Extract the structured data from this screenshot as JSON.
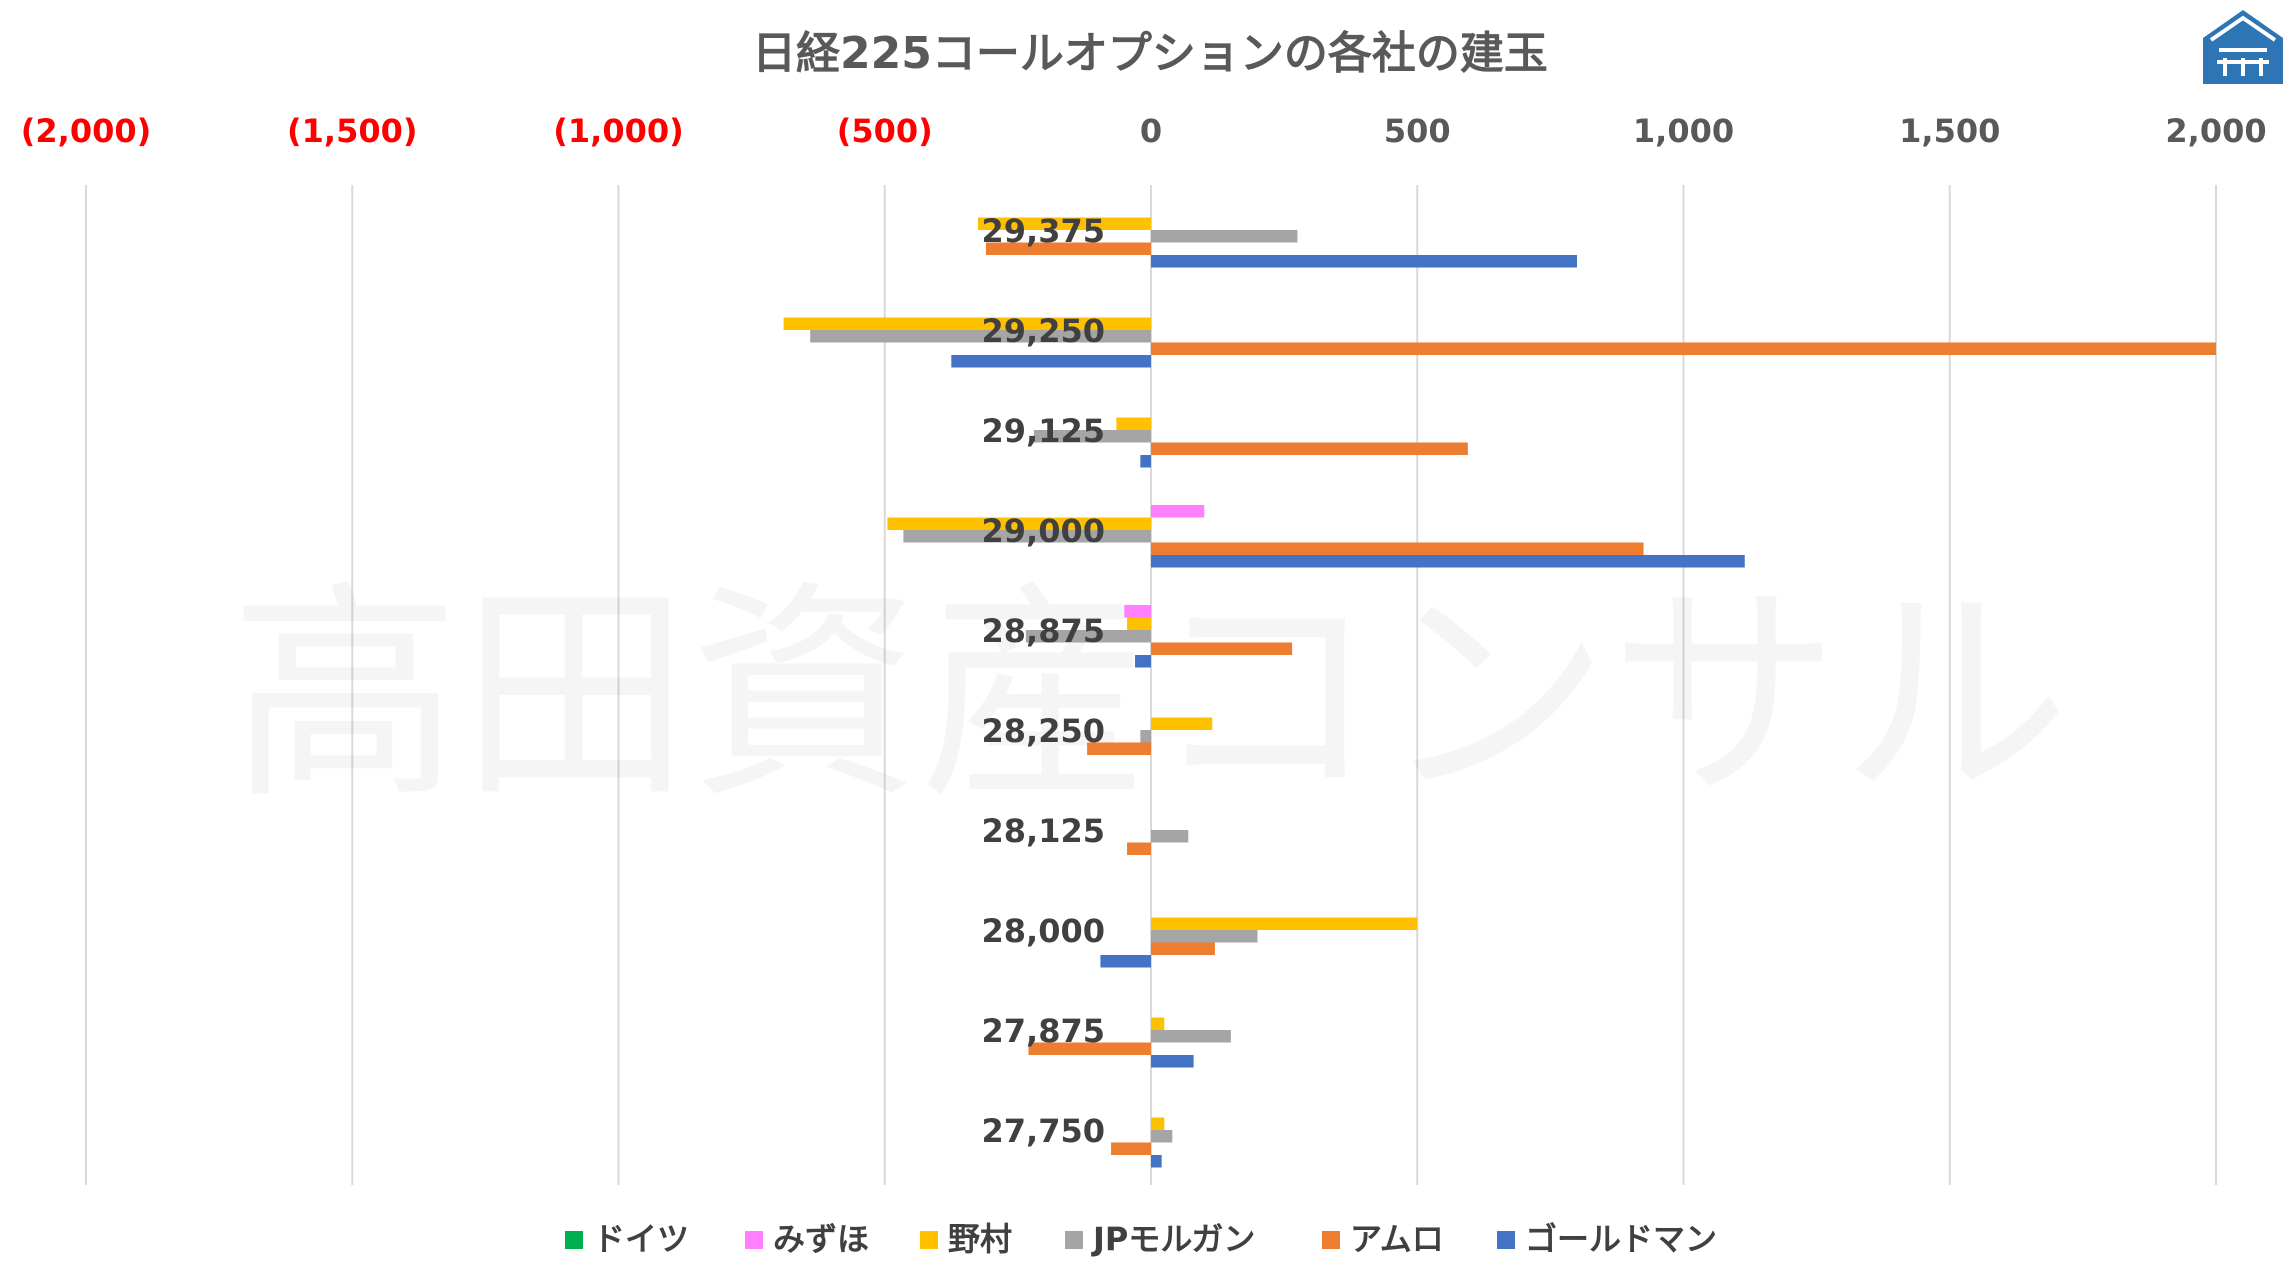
{
  "chart_data": {
    "type": "bar",
    "orientation": "horizontal",
    "title": "日経225コールオプションの各社の建玉",
    "watermark": "高田資産コンサル",
    "x_range": [
      -2000,
      2000
    ],
    "x_ticks": [
      {
        "value": -2000,
        "label": "(2,000)"
      },
      {
        "value": -1500,
        "label": "(1,500)"
      },
      {
        "value": -1000,
        "label": "(1,000)"
      },
      {
        "value": -500,
        "label": "(500)"
      },
      {
        "value": 0,
        "label": "0"
      },
      {
        "value": 500,
        "label": "500"
      },
      {
        "value": 1000,
        "label": "1,000"
      },
      {
        "value": 1500,
        "label": "1,500"
      },
      {
        "value": 2000,
        "label": "2,000"
      }
    ],
    "negative_tick_color": "#ff0000",
    "positive_tick_color": "#595959",
    "categories": [
      "29,375",
      "29,250",
      "29,125",
      "29,000",
      "28,875",
      "28,250",
      "28,125",
      "28,000",
      "27,875",
      "27,750"
    ],
    "series": [
      {
        "name": "ドイツ",
        "color": "#00b050",
        "values": [
          0,
          0,
          0,
          0,
          0,
          0,
          0,
          0,
          0,
          0
        ]
      },
      {
        "name": "みずほ",
        "color": "#ff7fff",
        "values": [
          0,
          0,
          0,
          100,
          -50,
          0,
          0,
          0,
          0,
          0
        ]
      },
      {
        "name": "野村",
        "color": "#ffc000",
        "values": [
          -325,
          -690,
          -65,
          -495,
          -45,
          115,
          0,
          500,
          25,
          25
        ]
      },
      {
        "name": "JPモルガン",
        "color": "#a5a5a5",
        "values": [
          275,
          -640,
          -220,
          -465,
          -235,
          -20,
          70,
          200,
          150,
          40
        ]
      },
      {
        "name": "アムロ",
        "color": "#ed7d31",
        "values": [
          -310,
          2000,
          595,
          925,
          265,
          -120,
          -45,
          120,
          -230,
          -75
        ]
      },
      {
        "name": "ゴールドマン",
        "color": "#4472c4",
        "values": [
          800,
          -375,
          -20,
          1115,
          -30,
          0,
          0,
          -95,
          80,
          20
        ]
      }
    ]
  },
  "logo": {
    "name": "company-logo"
  }
}
